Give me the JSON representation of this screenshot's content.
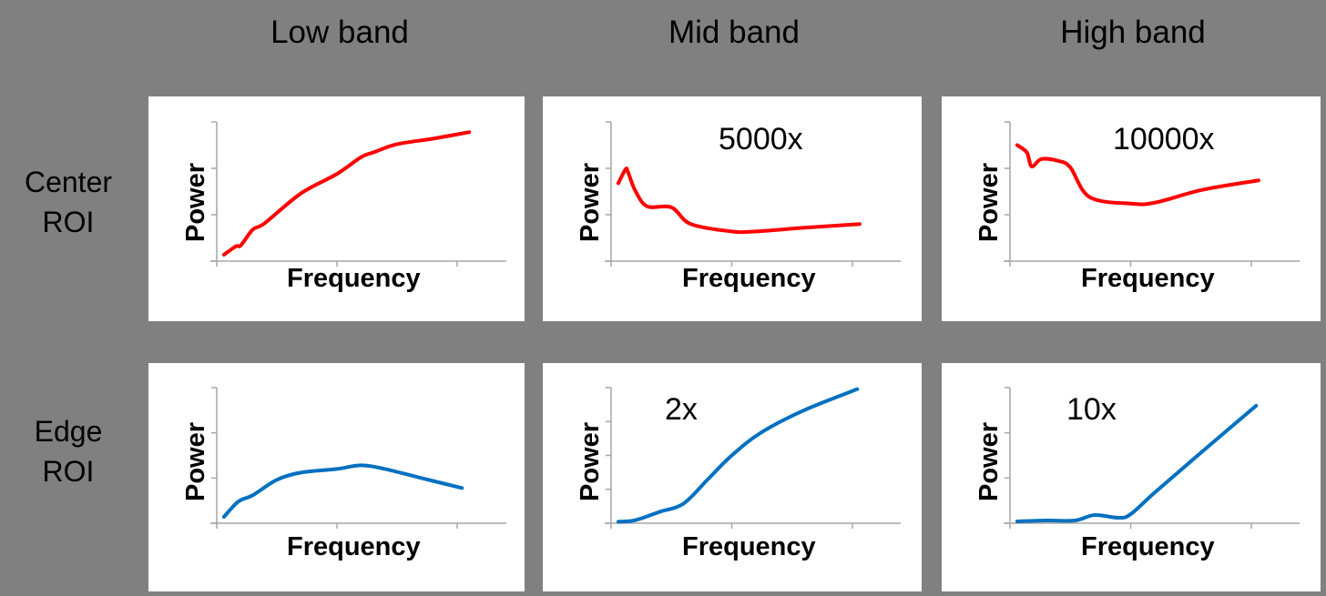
{
  "headers": [
    "Low band",
    "Mid band",
    "High band"
  ],
  "rows": [
    {
      "label_line1": "Center",
      "label_line2": "ROI"
    },
    {
      "label_line1": "Edge",
      "label_line2": "ROI"
    }
  ],
  "axis_labels": {
    "x": "Frequency",
    "y": "Power"
  },
  "colors": {
    "center": "#ff0000",
    "edge": "#0070c0",
    "axis": "#a6a6a6",
    "background": "#808080"
  },
  "factors": {
    "center_low": "",
    "center_mid": "5000x",
    "center_high": "10000x",
    "edge_low": "",
    "edge_mid": "2x",
    "edge_high": "10x"
  },
  "chart_data": [
    {
      "type": "line",
      "title": "Center ROI – Low band",
      "xlabel": "Frequency",
      "ylabel": "Power",
      "series": [
        {
          "name": "Center",
          "color": "#ff0000",
          "x": [
            0.03,
            0.08,
            0.1,
            0.15,
            0.2,
            0.35,
            0.5,
            0.6,
            0.65,
            0.75,
            0.9,
            1.05
          ],
          "y": [
            0.07,
            0.16,
            0.17,
            0.34,
            0.41,
            0.73,
            0.94,
            1.12,
            1.17,
            1.26,
            1.32,
            1.39
          ]
        }
      ],
      "ylim": [
        0,
        1.5
      ],
      "xlim": [
        0,
        1.2
      ]
    },
    {
      "type": "line",
      "title": "Center ROI – Mid band",
      "annotation": "5000x",
      "xlabel": "Frequency",
      "ylabel": "Power",
      "series": [
        {
          "name": "Center",
          "color": "#ff0000",
          "x": [
            0.03,
            0.06,
            0.07,
            0.1,
            0.15,
            0.25,
            0.33,
            0.5,
            0.6,
            0.8,
            1.03
          ],
          "y": [
            0.84,
            0.99,
            0.96,
            0.76,
            0.59,
            0.58,
            0.4,
            0.32,
            0.32,
            0.36,
            0.4
          ]
        }
      ],
      "ylim": [
        0,
        1.5
      ],
      "xlim": [
        0,
        1.2
      ]
    },
    {
      "type": "line",
      "title": "Center ROI – High band",
      "annotation": "10000x",
      "xlabel": "Frequency",
      "ylabel": "Power",
      "series": [
        {
          "name": "Center",
          "color": "#ff0000",
          "x": [
            0.03,
            0.07,
            0.09,
            0.13,
            0.2,
            0.25,
            0.33,
            0.5,
            0.6,
            0.8,
            1.03
          ],
          "y": [
            1.25,
            1.17,
            1.02,
            1.1,
            1.08,
            1.01,
            0.69,
            0.62,
            0.63,
            0.77,
            0.87
          ]
        }
      ],
      "ylim": [
        0,
        1.5
      ],
      "xlim": [
        0,
        1.2
      ]
    },
    {
      "type": "line",
      "title": "Edge ROI – Low band",
      "xlabel": "Frequency",
      "ylabel": "Power",
      "series": [
        {
          "name": "Edge",
          "color": "#0070c0",
          "x": [
            0.03,
            0.09,
            0.15,
            0.25,
            0.35,
            0.5,
            0.6,
            0.7,
            0.85,
            1.02
          ],
          "y": [
            0.07,
            0.24,
            0.31,
            0.48,
            0.56,
            0.6,
            0.64,
            0.6,
            0.5,
            0.39
          ]
        }
      ],
      "ylim": [
        0,
        1.5
      ],
      "xlim": [
        0,
        1.2
      ]
    },
    {
      "type": "line",
      "title": "Edge ROI – Mid band",
      "annotation": "2x",
      "xlabel": "Frequency",
      "ylabel": "Power",
      "series": [
        {
          "name": "Edge",
          "color": "#0070c0",
          "x": [
            0.03,
            0.1,
            0.2,
            0.3,
            0.4,
            0.5,
            0.62,
            0.8,
            1.02
          ],
          "y": [
            0.02,
            0.04,
            0.15,
            0.26,
            0.58,
            0.9,
            1.2,
            1.5,
            1.78
          ]
        }
      ],
      "ylim": [
        0,
        1.8
      ],
      "xlim": [
        0,
        1.2
      ]
    },
    {
      "type": "line",
      "title": "Edge ROI – High band",
      "annotation": "10x",
      "xlabel": "Frequency",
      "ylabel": "Power",
      "series": [
        {
          "name": "Edge",
          "color": "#0070c0",
          "x": [
            0.03,
            0.15,
            0.27,
            0.35,
            0.45,
            0.5,
            0.6,
            0.8,
            1.02
          ],
          "y": [
            0.02,
            0.03,
            0.03,
            0.09,
            0.06,
            0.1,
            0.34,
            0.8,
            1.3
          ]
        }
      ],
      "ylim": [
        0,
        1.5
      ],
      "xlim": [
        0,
        1.2
      ]
    }
  ]
}
